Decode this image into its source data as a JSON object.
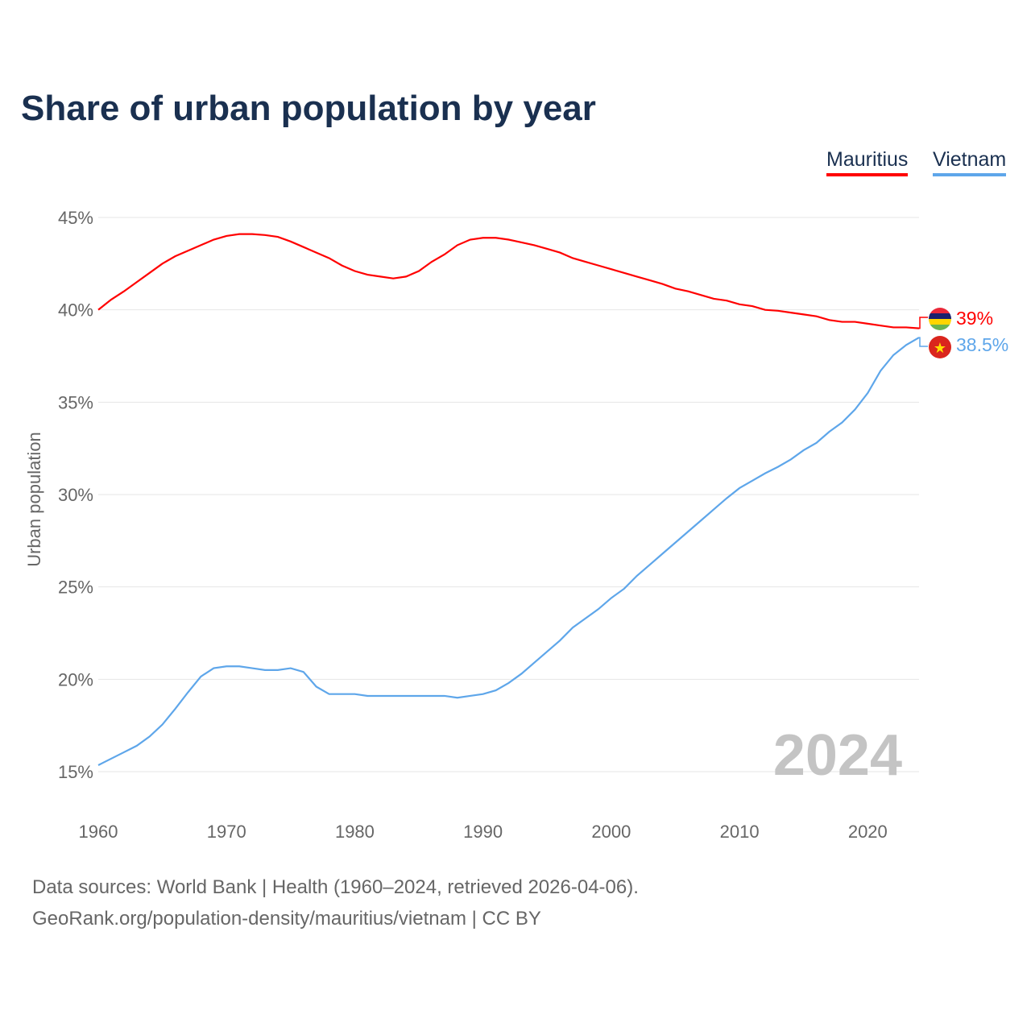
{
  "chart_data": {
    "type": "line",
    "title": "Share of urban population by year",
    "ylabel": "Urban population",
    "xlabel": "",
    "ylim": [
      15,
      45
    ],
    "xlim": [
      1960,
      2024
    ],
    "yticks": [
      "15%",
      "20%",
      "25%",
      "30%",
      "35%",
      "40%",
      "45%"
    ],
    "ytick_values": [
      15,
      20,
      25,
      30,
      35,
      40,
      45
    ],
    "xticks": [
      "1960",
      "1970",
      "1980",
      "1990",
      "2000",
      "2010",
      "2020"
    ],
    "xtick_values": [
      1960,
      1970,
      1980,
      1990,
      2000,
      2010,
      2020
    ],
    "grid": true,
    "legend_placement": "top-right",
    "year_label": "2024",
    "series": [
      {
        "name": "Mauritius",
        "color": "#ff0000",
        "end_label": "39%",
        "values": [
          40.0,
          40.55,
          41.0,
          41.5,
          42.0,
          42.5,
          42.9,
          43.2,
          43.5,
          43.8,
          44.0,
          44.1,
          44.1,
          44.05,
          43.95,
          43.7,
          43.4,
          43.1,
          42.8,
          42.4,
          42.1,
          41.9,
          41.8,
          41.7,
          41.8,
          42.1,
          42.6,
          43.0,
          43.5,
          43.8,
          43.9,
          43.9,
          43.8,
          43.65,
          43.5,
          43.3,
          43.1,
          42.8,
          42.6,
          42.4,
          42.2,
          42.0,
          41.8,
          41.6,
          41.4,
          41.15,
          41.0,
          40.8,
          40.6,
          40.5,
          40.3,
          40.2,
          40.0,
          39.95,
          39.85,
          39.75,
          39.65,
          39.45,
          39.35,
          39.35,
          39.25,
          39.15,
          39.05,
          39.05,
          39.0
        ]
      },
      {
        "name": "Vietnam",
        "color": "#5ea6ea",
        "end_label": "38.5%",
        "values": [
          15.35,
          15.7,
          16.05,
          16.4,
          16.9,
          17.55,
          18.4,
          19.3,
          20.15,
          20.6,
          20.7,
          20.7,
          20.6,
          20.5,
          20.5,
          20.6,
          20.4,
          19.6,
          19.2,
          19.2,
          19.2,
          19.1,
          19.1,
          19.1,
          19.1,
          19.1,
          19.1,
          19.1,
          19.0,
          19.1,
          19.2,
          19.4,
          19.8,
          20.3,
          20.9,
          21.5,
          22.1,
          22.8,
          23.3,
          23.8,
          24.4,
          24.9,
          25.6,
          26.2,
          26.8,
          27.4,
          28.0,
          28.6,
          29.2,
          29.8,
          30.35,
          30.75,
          31.15,
          31.5,
          31.9,
          32.4,
          32.8,
          33.4,
          33.9,
          34.6,
          35.5,
          36.7,
          37.55,
          38.1,
          38.5
        ]
      }
    ]
  },
  "footer": {
    "line1": "Data sources: World Bank | Health (1960–2024, retrieved 2026-04-06).",
    "line2": "GeoRank.org/population-density/mauritius/vietnam | CC BY"
  }
}
